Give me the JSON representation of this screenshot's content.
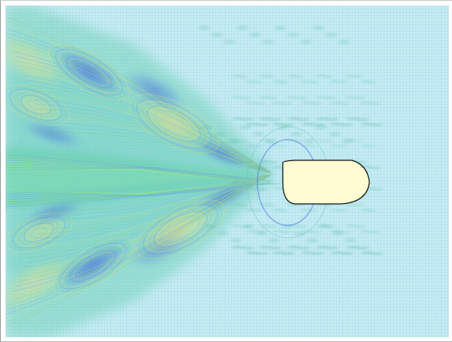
{
  "visualization": {
    "kind": "flow-field-contour",
    "colors": {
      "background": "#bfe6f0",
      "mesh": "#8fd3e6",
      "ambient": "#8ad6e8",
      "low": "#2c56d8",
      "mid": "#56c8a2",
      "high": "#f0d98f",
      "wave": "#3aa98b",
      "body_fill": "#fffbd2",
      "body_stroke": "#111111"
    },
    "legend": "none",
    "axes": "none"
  }
}
